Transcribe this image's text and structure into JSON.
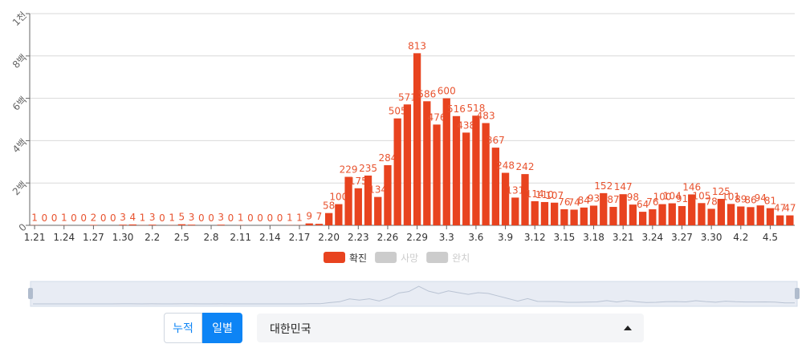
{
  "chart_data": {
    "type": "bar",
    "categories": [
      "1.21",
      null,
      null,
      "1.24",
      null,
      null,
      "1.27",
      null,
      null,
      "1.30",
      null,
      null,
      "2.2",
      null,
      null,
      "2.5",
      null,
      null,
      "2.8",
      null,
      null,
      "2.11",
      null,
      null,
      "2.14",
      null,
      null,
      "2.17",
      null,
      null,
      "2.20",
      null,
      null,
      "2.23",
      null,
      null,
      "2.26",
      null,
      null,
      "2.29",
      null,
      null,
      "3.3",
      null,
      null,
      "3.6",
      null,
      null,
      "3.9",
      null,
      null,
      "3.12",
      null,
      null,
      "3.15",
      null,
      null,
      "3.18",
      null,
      null,
      "3.21",
      null,
      null,
      "3.24",
      null,
      null,
      "3.27",
      null,
      null,
      "3.30",
      null,
      null,
      "4.2",
      null,
      null,
      "4.5",
      null,
      null
    ],
    "series": [
      {
        "name": "확진",
        "color": "#e8431f",
        "values": [
          1,
          0,
          0,
          1,
          0,
          0,
          2,
          0,
          0,
          3,
          4,
          1,
          3,
          0,
          1,
          5,
          3,
          0,
          0,
          3,
          0,
          1,
          0,
          0,
          0,
          0,
          1,
          1,
          9,
          7,
          58,
          100,
          229,
          175,
          235,
          134,
          284,
          505,
          571,
          813,
          586,
          476,
          600,
          516,
          438,
          518,
          483,
          367,
          248,
          131,
          242,
          114,
          110,
          107,
          76,
          74,
          84,
          93,
          152,
          87,
          147,
          98,
          64,
          76,
          100,
          104,
          91,
          146,
          105,
          78,
          125,
          101,
          89,
          86,
          94,
          81,
          47,
          47
        ]
      }
    ],
    "legend": [
      {
        "name": "확진",
        "color": "#e8431f"
      },
      {
        "name": "사망",
        "color": "#cccccc"
      },
      {
        "name": "완치",
        "color": "#cccccc"
      }
    ],
    "ylim": [
      0,
      1000
    ],
    "yticks": [
      0,
      {
        "value": 200,
        "label": "2백"
      },
      {
        "value": 400,
        "label": "4백"
      },
      {
        "value": 600,
        "label": "6백"
      },
      {
        "value": 800,
        "label": "8백"
      },
      {
        "value": 1000,
        "label": "1천"
      }
    ],
    "grid": true
  },
  "controls": {
    "mode_buttons": [
      "누적",
      "일별"
    ],
    "active_mode": 1,
    "region": "대한민국"
  }
}
